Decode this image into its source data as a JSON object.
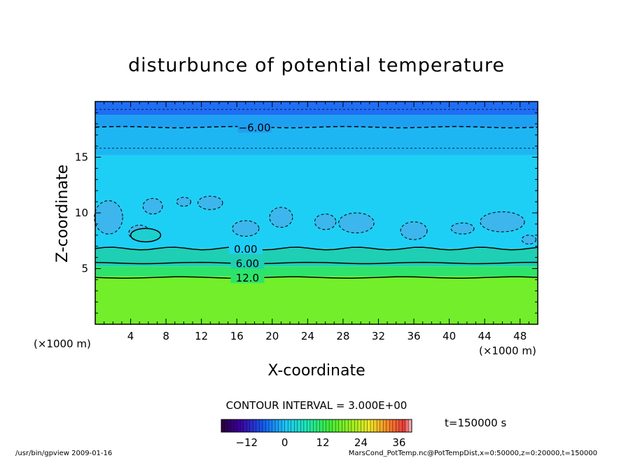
{
  "chart_data": {
    "type": "heatmap",
    "title": "disturbunce of potential temperature",
    "xlabel": "X-coordinate",
    "ylabel": "Z-coordinate",
    "x_unit_left": "(×1000 m)",
    "x_unit_right": "(×1000 m)",
    "xlim": [
      0,
      50
    ],
    "ylim": [
      0,
      20
    ],
    "x_ticks": [
      4,
      8,
      12,
      16,
      20,
      24,
      28,
      32,
      36,
      40,
      44,
      48
    ],
    "y_ticks": [
      5,
      10,
      15
    ],
    "contour_interval_text": "CONTOUR INTERVAL = 3.000E+00",
    "time_text": "t=150000 s",
    "colorbar": {
      "range": [
        -20,
        40
      ],
      "tick_values": [
        -12,
        0,
        12,
        24,
        36
      ],
      "tick_labels": [
        "−12",
        "0",
        "12",
        "24",
        "36"
      ]
    },
    "contours": [
      {
        "label": "−6.00",
        "z": 17.7,
        "label_x": 18
      },
      {
        "label": "0.00",
        "z": 6.8,
        "label_x": 17
      },
      {
        "label": "6.00",
        "z": 5.5,
        "label_x": 17.2
      },
      {
        "label": "12.0",
        "z": 4.2,
        "label_x": 17.2
      }
    ],
    "colors": {
      "top_blue": "#1f6ef5",
      "mid_blue": "#1ea0f2",
      "light_blue": "#1ecff5",
      "teal": "#1ecfb4",
      "green": "#2ee36a",
      "lime": "#73ee2a"
    }
  },
  "footer": {
    "left": "/usr/bin/gpview   2009-01-16",
    "right": "MarsCond_PotTemp.nc@PotTempDist,x=0:50000,z=0:20000,t=150000"
  }
}
